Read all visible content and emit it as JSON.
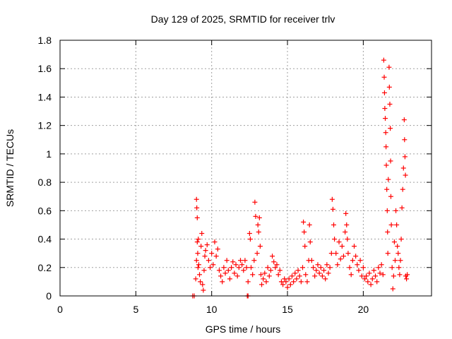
{
  "chart_data": {
    "type": "scatter",
    "title": "Day 129 of 2025, SRMTID for receiver trlv",
    "xlabel": "GPS time / hours",
    "ylabel": "SRMTID / TECUs",
    "xlim": [
      0,
      24.5
    ],
    "ylim": [
      0,
      1.8
    ],
    "xticks": [
      0,
      5,
      10,
      15,
      20
    ],
    "xtick_labels": [
      "0",
      "5",
      "10",
      "15",
      "20"
    ],
    "yticks": [
      0,
      0.2,
      0.4,
      0.6,
      0.8,
      1.0,
      1.2,
      1.4,
      1.6,
      1.8
    ],
    "ytick_labels": [
      "0",
      "0.2",
      "0.4",
      "0.6",
      "0.8",
      "1",
      "1.2",
      "1.4",
      "1.6",
      "1.8"
    ],
    "grid": true,
    "marker": "+",
    "color": "#ff0000",
    "series": [
      {
        "name": "SRMTID",
        "points": [
          [
            8.75,
            0.0
          ],
          [
            8.85,
            0.0
          ],
          [
            12.35,
            0.0
          ],
          [
            12.4,
            0.0
          ],
          [
            8.95,
            0.12
          ],
          [
            9.0,
            0.25
          ],
          [
            9.0,
            0.68
          ],
          [
            9.02,
            0.62
          ],
          [
            9.05,
            0.55
          ],
          [
            9.05,
            0.38
          ],
          [
            9.08,
            0.3
          ],
          [
            9.1,
            0.2
          ],
          [
            9.12,
            0.4
          ],
          [
            9.15,
            0.22
          ],
          [
            9.2,
            0.15
          ],
          [
            9.25,
            0.1
          ],
          [
            9.3,
            0.35
          ],
          [
            9.35,
            0.44
          ],
          [
            9.4,
            0.08
          ],
          [
            9.45,
            0.04
          ],
          [
            9.5,
            0.18
          ],
          [
            9.55,
            0.28
          ],
          [
            9.6,
            0.32
          ],
          [
            9.7,
            0.36
          ],
          [
            9.8,
            0.25
          ],
          [
            9.9,
            0.2
          ],
          [
            10.0,
            0.3
          ],
          [
            10.1,
            0.22
          ],
          [
            10.2,
            0.38
          ],
          [
            10.3,
            0.28
          ],
          [
            10.4,
            0.33
          ],
          [
            10.5,
            0.18
          ],
          [
            10.6,
            0.14
          ],
          [
            10.7,
            0.1
          ],
          [
            10.8,
            0.2
          ],
          [
            10.9,
            0.16
          ],
          [
            11.0,
            0.25
          ],
          [
            11.1,
            0.18
          ],
          [
            11.2,
            0.12
          ],
          [
            11.3,
            0.2
          ],
          [
            11.4,
            0.24
          ],
          [
            11.5,
            0.16
          ],
          [
            11.6,
            0.22
          ],
          [
            11.7,
            0.14
          ],
          [
            11.8,
            0.2
          ],
          [
            11.9,
            0.25
          ],
          [
            12.0,
            0.22
          ],
          [
            12.1,
            0.18
          ],
          [
            12.2,
            0.25
          ],
          [
            12.3,
            0.2
          ],
          [
            12.4,
            0.1
          ],
          [
            12.5,
            0.44
          ],
          [
            12.55,
            0.4
          ],
          [
            12.6,
            0.2
          ],
          [
            12.7,
            0.15
          ],
          [
            12.8,
            0.25
          ],
          [
            12.85,
            0.66
          ],
          [
            12.9,
            0.56
          ],
          [
            13.0,
            0.3
          ],
          [
            13.05,
            0.5
          ],
          [
            13.1,
            0.45
          ],
          [
            13.15,
            0.55
          ],
          [
            13.2,
            0.35
          ],
          [
            13.25,
            0.15
          ],
          [
            13.3,
            0.08
          ],
          [
            13.4,
            0.12
          ],
          [
            13.5,
            0.16
          ],
          [
            13.6,
            0.1
          ],
          [
            13.7,
            0.2
          ],
          [
            13.8,
            0.14
          ],
          [
            13.9,
            0.18
          ],
          [
            14.0,
            0.28
          ],
          [
            14.1,
            0.24
          ],
          [
            14.2,
            0.2
          ],
          [
            14.3,
            0.22
          ],
          [
            14.4,
            0.15
          ],
          [
            14.5,
            0.18
          ],
          [
            14.6,
            0.1
          ],
          [
            14.7,
            0.08
          ],
          [
            14.8,
            0.12
          ],
          [
            14.9,
            0.1
          ],
          [
            15.0,
            0.06
          ],
          [
            15.1,
            0.12
          ],
          [
            15.2,
            0.08
          ],
          [
            15.3,
            0.14
          ],
          [
            15.4,
            0.1
          ],
          [
            15.5,
            0.16
          ],
          [
            15.6,
            0.12
          ],
          [
            15.7,
            0.18
          ],
          [
            15.8,
            0.14
          ],
          [
            15.9,
            0.1
          ],
          [
            16.0,
            0.2
          ],
          [
            16.05,
            0.52
          ],
          [
            16.1,
            0.45
          ],
          [
            16.15,
            0.35
          ],
          [
            16.2,
            0.15
          ],
          [
            16.3,
            0.1
          ],
          [
            16.4,
            0.25
          ],
          [
            16.45,
            0.5
          ],
          [
            16.5,
            0.38
          ],
          [
            16.6,
            0.25
          ],
          [
            16.7,
            0.2
          ],
          [
            16.8,
            0.14
          ],
          [
            16.9,
            0.18
          ],
          [
            17.0,
            0.22
          ],
          [
            17.1,
            0.16
          ],
          [
            17.2,
            0.2
          ],
          [
            17.3,
            0.14
          ],
          [
            17.4,
            0.18
          ],
          [
            17.5,
            0.12
          ],
          [
            17.6,
            0.22
          ],
          [
            17.7,
            0.16
          ],
          [
            17.8,
            0.2
          ],
          [
            17.9,
            0.3
          ],
          [
            17.95,
            0.68
          ],
          [
            18.0,
            0.61
          ],
          [
            18.05,
            0.5
          ],
          [
            18.1,
            0.4
          ],
          [
            18.2,
            0.3
          ],
          [
            18.3,
            0.22
          ],
          [
            18.4,
            0.38
          ],
          [
            18.5,
            0.26
          ],
          [
            18.6,
            0.35
          ],
          [
            18.7,
            0.28
          ],
          [
            18.8,
            0.45
          ],
          [
            18.85,
            0.58
          ],
          [
            18.9,
            0.5
          ],
          [
            18.95,
            0.4
          ],
          [
            19.0,
            0.3
          ],
          [
            19.1,
            0.2
          ],
          [
            19.2,
            0.15
          ],
          [
            19.3,
            0.25
          ],
          [
            19.4,
            0.35
          ],
          [
            19.5,
            0.28
          ],
          [
            19.6,
            0.22
          ],
          [
            19.7,
            0.18
          ],
          [
            19.8,
            0.25
          ],
          [
            19.9,
            0.14
          ],
          [
            20.0,
            0.2
          ],
          [
            20.1,
            0.12
          ],
          [
            20.2,
            0.14
          ],
          [
            20.3,
            0.1
          ],
          [
            20.4,
            0.16
          ],
          [
            20.5,
            0.08
          ],
          [
            20.6,
            0.12
          ],
          [
            20.7,
            0.18
          ],
          [
            20.8,
            0.14
          ],
          [
            20.9,
            0.1
          ],
          [
            21.0,
            0.2
          ],
          [
            21.1,
            0.16
          ],
          [
            21.2,
            0.22
          ],
          [
            21.3,
            0.15
          ],
          [
            21.35,
            1.66
          ],
          [
            21.38,
            1.54
          ],
          [
            21.4,
            1.43
          ],
          [
            21.42,
            1.32
          ],
          [
            21.45,
            1.25
          ],
          [
            21.48,
            1.15
          ],
          [
            21.5,
            1.05
          ],
          [
            21.52,
            0.92
          ],
          [
            21.55,
            0.75
          ],
          [
            21.58,
            0.6
          ],
          [
            21.6,
            0.45
          ],
          [
            21.62,
            0.3
          ],
          [
            21.65,
            0.82
          ],
          [
            21.7,
            1.61
          ],
          [
            21.72,
            1.47
          ],
          [
            21.75,
            1.35
          ],
          [
            21.78,
            1.18
          ],
          [
            21.8,
            0.95
          ],
          [
            21.82,
            0.7
          ],
          [
            21.85,
            0.5
          ],
          [
            21.9,
            0.2
          ],
          [
            21.95,
            0.05
          ],
          [
            22.0,
            0.14
          ],
          [
            22.05,
            0.38
          ],
          [
            22.1,
            0.25
          ],
          [
            22.15,
            0.6
          ],
          [
            22.2,
            0.5
          ],
          [
            22.25,
            0.35
          ],
          [
            22.3,
            0.3
          ],
          [
            22.35,
            0.2
          ],
          [
            22.4,
            0.15
          ],
          [
            22.45,
            0.25
          ],
          [
            22.5,
            0.4
          ],
          [
            22.55,
            0.62
          ],
          [
            22.6,
            0.75
          ],
          [
            22.65,
            0.9
          ],
          [
            22.7,
            1.24
          ],
          [
            22.72,
            1.1
          ],
          [
            22.75,
            0.98
          ],
          [
            22.78,
            0.85
          ],
          [
            22.8,
            0.14
          ],
          [
            22.85,
            0.12
          ],
          [
            22.9,
            0.15
          ]
        ]
      }
    ]
  }
}
